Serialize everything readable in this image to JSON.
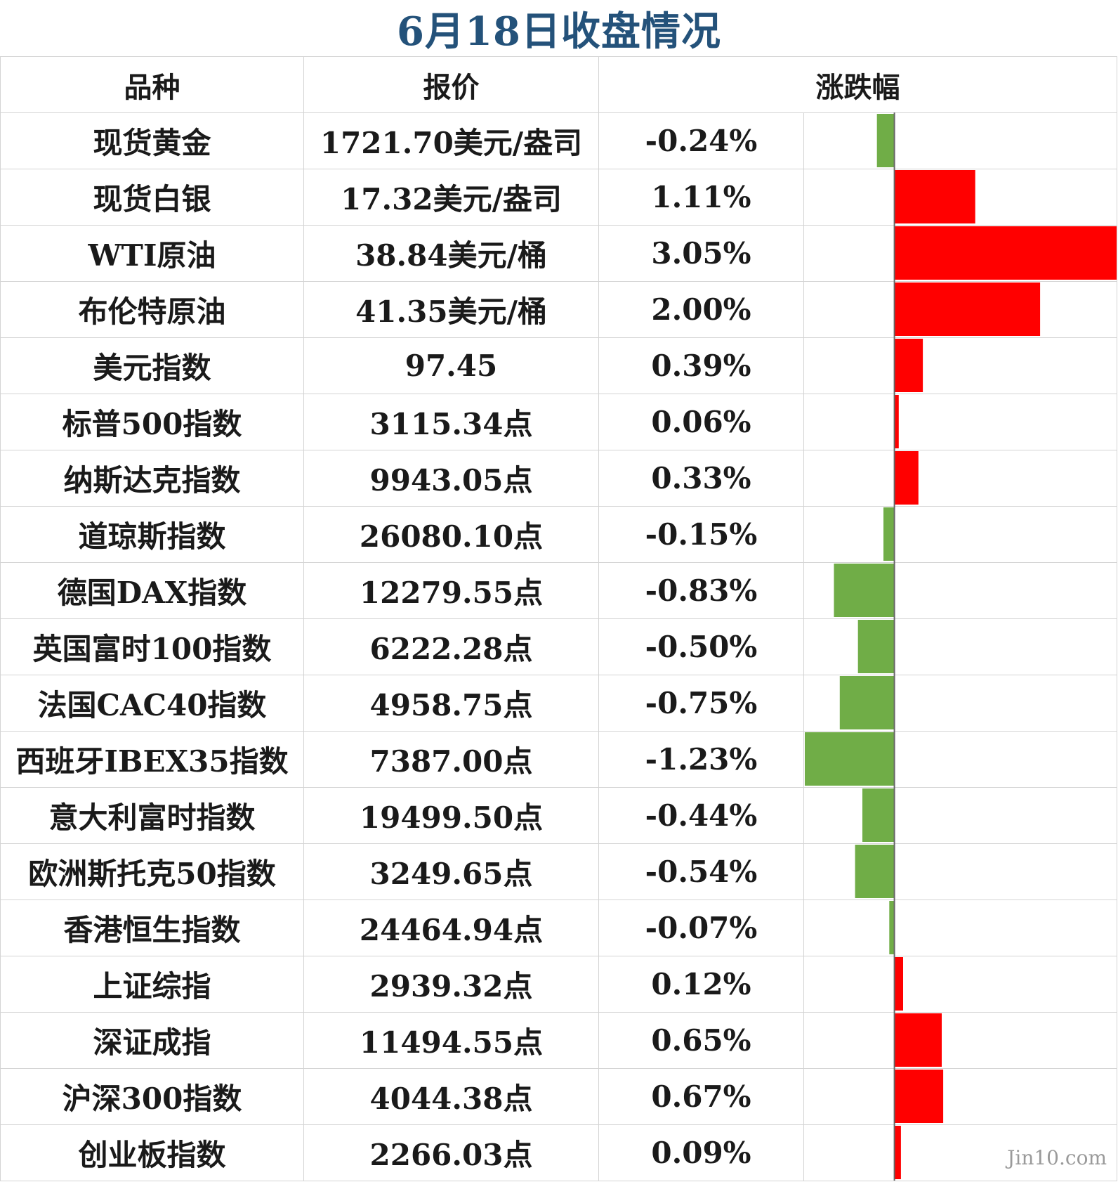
{
  "title": "6月18日收盘情况",
  "headers": {
    "name": "品种",
    "price": "报价",
    "change": "涨跌幅"
  },
  "watermark": "Jin10.com",
  "colors": {
    "up": "#ff0000",
    "down": "#70ad47",
    "title": "#24527a"
  },
  "chart_data": {
    "type": "bar",
    "orientation": "horizontal",
    "title": "6月18日收盘情况",
    "categories": [
      "现货黄金",
      "现货白银",
      "WTI原油",
      "布伦特原油",
      "美元指数",
      "标普500指数",
      "纳斯达克指数",
      "道琼斯指数",
      "德国DAX指数",
      "英国富时100指数",
      "法国CAC40指数",
      "西班牙IBEX35指数",
      "意大利富时指数",
      "欧洲斯托克50指数",
      "香港恒生指数",
      "上证综指",
      "深证成指",
      "沪深300指数",
      "创业板指数"
    ],
    "values": [
      -0.24,
      1.11,
      3.05,
      2.0,
      0.39,
      0.06,
      0.33,
      -0.15,
      -0.83,
      -0.5,
      -0.75,
      -1.23,
      -0.44,
      -0.54,
      -0.07,
      0.12,
      0.65,
      0.67,
      0.09
    ],
    "xlim": [
      -1.23,
      3.05
    ]
  },
  "rows": [
    {
      "name": "现货黄金",
      "price": "1721.70美元/盎司",
      "change": "-0.24%"
    },
    {
      "name": "现货白银",
      "price": "17.32美元/盎司",
      "change": "1.11%"
    },
    {
      "name": "WTI原油",
      "price": "38.84美元/桶",
      "change": "3.05%"
    },
    {
      "name": "布伦特原油",
      "price": "41.35美元/桶",
      "change": "2.00%"
    },
    {
      "name": "美元指数",
      "price": "97.45",
      "change": "0.39%"
    },
    {
      "name": "标普500指数",
      "price": "3115.34点",
      "change": "0.06%"
    },
    {
      "name": "纳斯达克指数",
      "price": "9943.05点",
      "change": "0.33%"
    },
    {
      "name": "道琼斯指数",
      "price": "26080.10点",
      "change": "-0.15%"
    },
    {
      "name": "德国DAX指数",
      "price": "12279.55点",
      "change": "-0.83%"
    },
    {
      "name": "英国富时100指数",
      "price": "6222.28点",
      "change": "-0.50%"
    },
    {
      "name": "法国CAC40指数",
      "price": "4958.75点",
      "change": "-0.75%"
    },
    {
      "name": "西班牙IBEX35指数",
      "price": "7387.00点",
      "change": "-1.23%"
    },
    {
      "name": "意大利富时指数",
      "price": "19499.50点",
      "change": "-0.44%"
    },
    {
      "name": "欧洲斯托克50指数",
      "price": "3249.65点",
      "change": "-0.54%"
    },
    {
      "name": "香港恒生指数",
      "price": "24464.94点",
      "change": "-0.07%"
    },
    {
      "name": "上证综指",
      "price": "2939.32点",
      "change": "0.12%"
    },
    {
      "name": "深证成指",
      "price": "11494.55点",
      "change": "0.65%"
    },
    {
      "name": "沪深300指数",
      "price": "4044.38点",
      "change": "0.67%"
    },
    {
      "name": "创业板指数",
      "price": "2266.03点",
      "change": "0.09%"
    }
  ]
}
